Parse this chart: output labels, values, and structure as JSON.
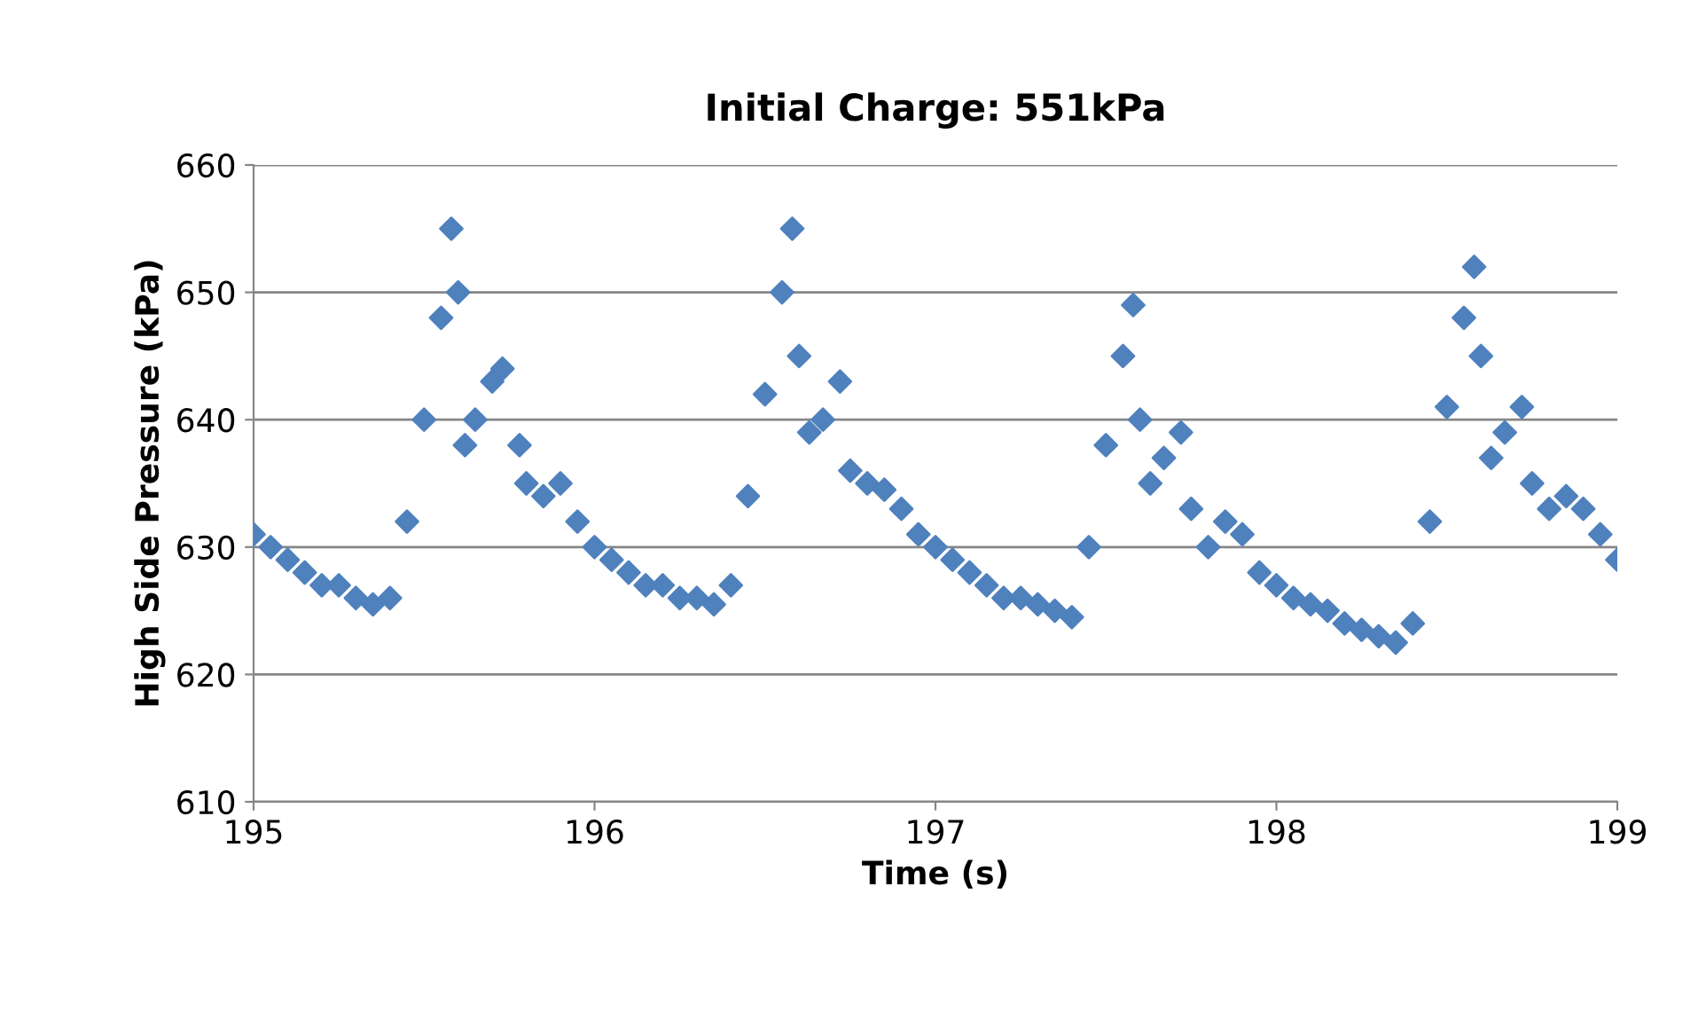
{
  "chart_data": {
    "type": "scatter",
    "title": "Initial Charge: 551kPa",
    "xlabel": "Time (s)",
    "ylabel": "High Side Pressure (kPa)",
    "xlim": [
      195,
      199
    ],
    "xticks": [
      195,
      196,
      197,
      198,
      199
    ],
    "ylim": [
      610,
      660
    ],
    "yticks": [
      610,
      620,
      630,
      640,
      650,
      660
    ],
    "grid": "y",
    "marker": "diamond",
    "series": [
      {
        "color": "#4f81bd",
        "x": [
          195.0,
          195.05,
          195.1,
          195.15,
          195.2,
          195.25,
          195.3,
          195.35,
          195.4,
          195.45,
          195.5,
          195.55,
          195.58,
          195.6,
          195.62,
          195.65,
          195.7,
          195.73,
          195.78,
          195.8,
          195.85,
          195.9,
          195.95,
          196.0,
          196.05,
          196.1,
          196.15,
          196.2,
          196.25,
          196.3,
          196.35,
          196.4,
          196.45,
          196.5,
          196.55,
          196.58,
          196.6,
          196.63,
          196.67,
          196.72,
          196.75,
          196.8,
          196.85,
          196.9,
          196.95,
          197.0,
          197.05,
          197.1,
          197.15,
          197.2,
          197.25,
          197.3,
          197.35,
          197.4,
          197.45,
          197.5,
          197.55,
          197.58,
          197.6,
          197.63,
          197.67,
          197.72,
          197.75,
          197.8,
          197.85,
          197.9,
          197.95,
          198.0,
          198.05,
          198.1,
          198.15,
          198.2,
          198.25,
          198.3,
          198.35,
          198.4,
          198.45,
          198.5,
          198.55,
          198.58,
          198.6,
          198.63,
          198.67,
          198.72,
          198.75,
          198.8,
          198.85,
          198.9,
          198.95,
          199.0
        ],
        "values": [
          631,
          630,
          629,
          628,
          627,
          627,
          626,
          625.5,
          626,
          632,
          640,
          648,
          655,
          650,
          638,
          640,
          643,
          644,
          638,
          635,
          634,
          635,
          632,
          630,
          629,
          628,
          627,
          627,
          626,
          626,
          625.5,
          627,
          634,
          642,
          650,
          655,
          645,
          639,
          640,
          643,
          636,
          635,
          634.5,
          633,
          631,
          630,
          629,
          628,
          627,
          626,
          626,
          625.5,
          625,
          624.5,
          630,
          638,
          645,
          649,
          640,
          635,
          637,
          639,
          633,
          630,
          632,
          631,
          628,
          627,
          626,
          625.5,
          625,
          624,
          623.5,
          623,
          622.5,
          624,
          632,
          641,
          648,
          652,
          645,
          637,
          639,
          641,
          635,
          633,
          634,
          633,
          631,
          629
        ]
      }
    ]
  }
}
